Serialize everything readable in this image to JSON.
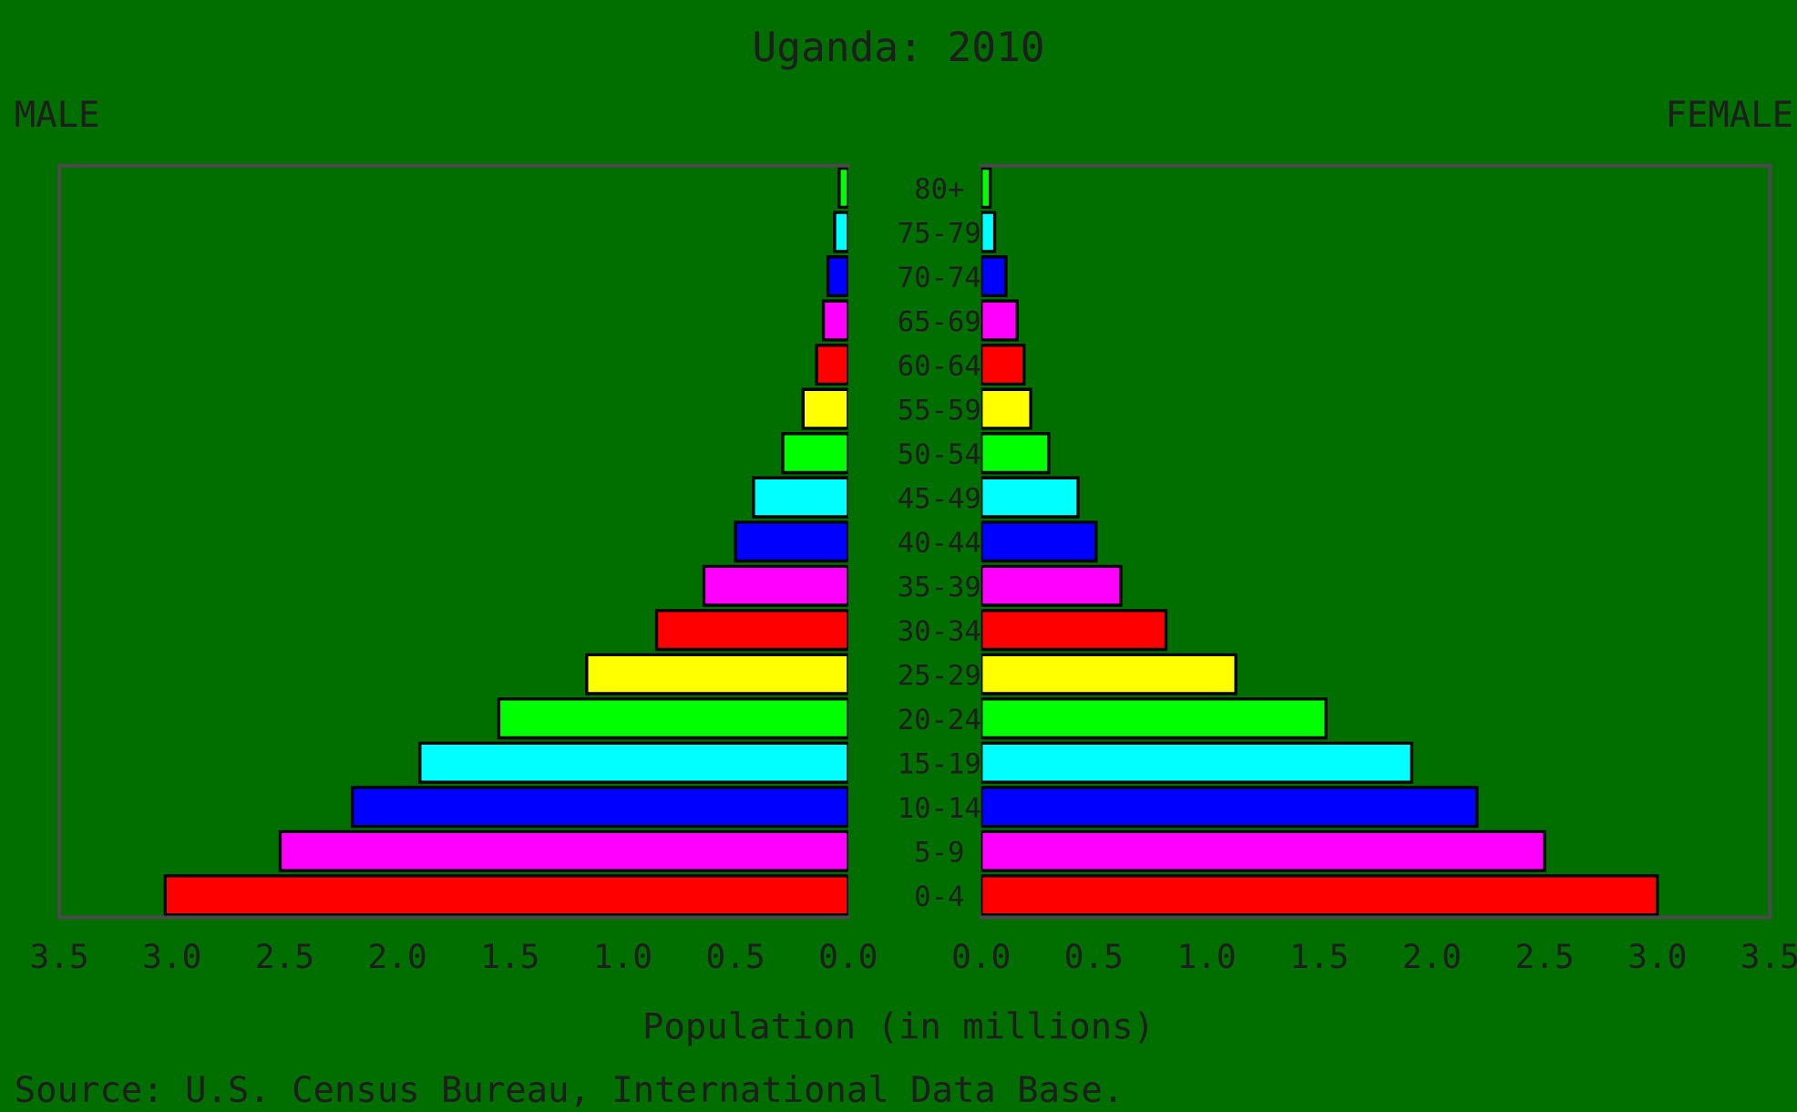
{
  "chart_data": [
    {
      "type": "bar",
      "orientation": "horizontal",
      "title": "Uganda: 2010",
      "subtitle": "MALE",
      "xlabel": "Population (in millions)",
      "categories": [
        "80+",
        "75-79",
        "70-74",
        "65-69",
        "60-64",
        "55-59",
        "50-54",
        "45-49",
        "40-44",
        "35-39",
        "30-34",
        "25-29",
        "20-24",
        "15-19",
        "10-14",
        "5-9",
        "0-4"
      ],
      "values": [
        0.04,
        0.06,
        0.09,
        0.11,
        0.14,
        0.2,
        0.29,
        0.42,
        0.5,
        0.64,
        0.85,
        1.16,
        1.55,
        1.9,
        2.2,
        2.52,
        3.03
      ],
      "colors": [
        "#00ff00",
        "#00ffff",
        "#0000ff",
        "#ff00ff",
        "#ff0000",
        "#ffff00",
        "#00ff00",
        "#00ffff",
        "#0000ff",
        "#ff00ff",
        "#ff0000",
        "#ffff00",
        "#00ff00",
        "#00ffff",
        "#0000ff",
        "#ff00ff",
        "#ff0000"
      ],
      "xlim": [
        3.5,
        0
      ],
      "xticks": [
        {
          "value": 3.5,
          "label": "3.5"
        },
        {
          "value": 3,
          "label": "3.0"
        },
        {
          "value": 2.5,
          "label": "2.5"
        },
        {
          "value": 2,
          "label": "2.0"
        },
        {
          "value": 1.5,
          "label": "1.5"
        },
        {
          "value": 1,
          "label": "1.0"
        },
        {
          "value": 0.5,
          "label": "0.5"
        },
        {
          "value": 0,
          "label": "0.0"
        }
      ],
      "annotations": [
        "Source: U.S. Census Bureau, International Data Base."
      ]
    },
    {
      "type": "bar",
      "orientation": "horizontal",
      "subtitle": "FEMALE",
      "tick_labels": "x",
      "categories": [
        null,
        null,
        null,
        null,
        null,
        null,
        null,
        null,
        null,
        null,
        null,
        null,
        null,
        null,
        null,
        null,
        null
      ],
      "values": [
        0.04,
        0.06,
        0.11,
        0.16,
        0.19,
        0.22,
        0.3,
        0.43,
        0.51,
        0.62,
        0.82,
        1.13,
        1.53,
        1.91,
        2.2,
        2.5,
        3.0
      ],
      "colors": [
        "#00ff00",
        "#00ffff",
        "#0000ff",
        "#ff00ff",
        "#ff0000",
        "#ffff00",
        "#00ff00",
        "#00ffff",
        "#0000ff",
        "#ff00ff",
        "#ff0000",
        "#ffff00",
        "#00ff00",
        "#00ffff",
        "#0000ff",
        "#ff00ff",
        "#ff0000"
      ],
      "xlim": [
        0,
        3.5
      ],
      "xticks": [
        {
          "value": 0,
          "label": "0.0"
        },
        {
          "value": 0.5,
          "label": "0.5"
        },
        {
          "value": 1,
          "label": "1.0"
        },
        {
          "value": 1.5,
          "label": "1.5"
        },
        {
          "value": 2,
          "label": "2.0"
        },
        {
          "value": 2.5,
          "label": "2.5"
        },
        {
          "value": 3,
          "label": "3.0"
        },
        {
          "value": 3.5,
          "label": "3.5"
        }
      ]
    }
  ]
}
